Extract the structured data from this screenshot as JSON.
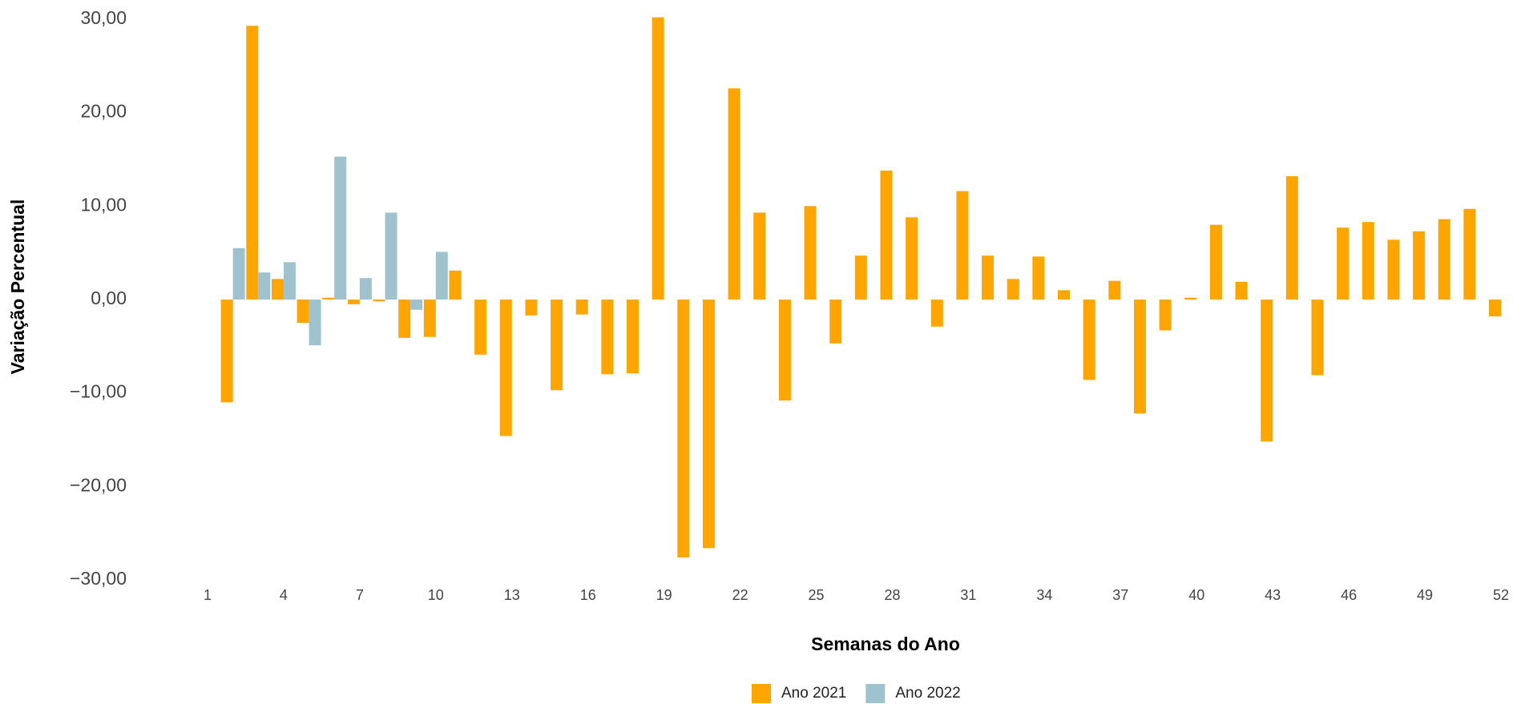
{
  "chart_data": {
    "type": "bar",
    "x_label": "Semanas do Ano",
    "y_label": "Variação Percentual",
    "x": [
      1,
      2,
      3,
      4,
      5,
      6,
      7,
      8,
      9,
      10,
      11,
      12,
      13,
      14,
      15,
      16,
      17,
      18,
      19,
      20,
      21,
      22,
      23,
      24,
      25,
      26,
      27,
      28,
      29,
      30,
      31,
      32,
      33,
      34,
      35,
      36,
      37,
      38,
      39,
      40,
      41,
      42,
      43,
      44,
      45,
      46,
      47,
      48,
      49,
      50,
      51,
      52
    ],
    "series": [
      {
        "name": "Ano 2021",
        "color": "#ffa500",
        "values": [
          null,
          -11.0,
          29.3,
          2.2,
          -2.5,
          0.2,
          -0.5,
          -0.2,
          -4.1,
          -4.0,
          3.1,
          -5.9,
          -14.6,
          -1.7,
          -9.7,
          -1.6,
          -8.0,
          -7.9,
          30.2,
          -27.6,
          -26.6,
          22.6,
          9.3,
          -10.8,
          10.0,
          -4.7,
          4.7,
          13.8,
          8.8,
          -2.9,
          11.6,
          4.7,
          2.2,
          4.6,
          1.0,
          -8.6,
          2.0,
          -12.2,
          -3.3,
          0.2,
          8.0,
          1.9,
          -15.2,
          13.2,
          -8.1,
          7.7,
          8.3,
          6.4,
          7.3,
          8.6,
          9.7,
          -1.8
        ]
      },
      {
        "name": "Ano 2022",
        "color": "#9ec3cf",
        "values": [
          null,
          5.5,
          2.9,
          4.0,
          -4.9,
          15.3,
          2.3,
          9.3,
          -1.1,
          5.1,
          null,
          null,
          null,
          null,
          null,
          null,
          null,
          null,
          null,
          null,
          null,
          null,
          null,
          null,
          null,
          null,
          null,
          null,
          null,
          null,
          null,
          null,
          null,
          null,
          null,
          null,
          null,
          null,
          null,
          null,
          null,
          null,
          null,
          null,
          null,
          null,
          null,
          null,
          null,
          null,
          null,
          null
        ]
      }
    ],
    "xlim": [
      1,
      52
    ],
    "xticks": [
      1,
      4,
      7,
      10,
      13,
      16,
      19,
      22,
      25,
      28,
      31,
      34,
      37,
      40,
      43,
      46,
      49,
      52
    ],
    "ylim": [
      -30,
      30
    ],
    "yticks": [
      {
        "value": -30,
        "label": "−30,00"
      },
      {
        "value": -20,
        "label": "−20,00"
      },
      {
        "value": -10,
        "label": "−10,00"
      },
      {
        "value": 0,
        "label": "0,00"
      },
      {
        "value": 10,
        "label": "10,00"
      },
      {
        "value": 20,
        "label": "20,00"
      },
      {
        "value": 30,
        "label": "30,00"
      }
    ],
    "grid": false
  }
}
